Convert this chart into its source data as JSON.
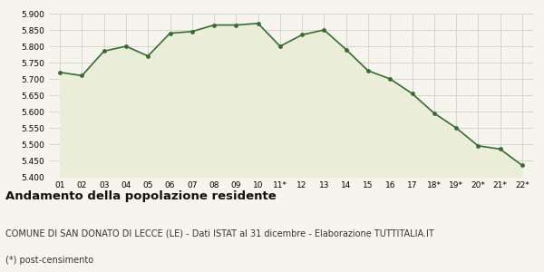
{
  "x_labels": [
    "01",
    "02",
    "03",
    "04",
    "05",
    "06",
    "07",
    "08",
    "09",
    "10",
    "11*",
    "12",
    "13",
    "14",
    "15",
    "16",
    "17",
    "18*",
    "19*",
    "20*",
    "21*",
    "22*"
  ],
  "y_values": [
    5720,
    5710,
    5785,
    5800,
    5770,
    5840,
    5845,
    5865,
    5865,
    5870,
    5800,
    5835,
    5850,
    5790,
    5725,
    5700,
    5655,
    5595,
    5550,
    5495,
    5485,
    5435
  ],
  "line_color": "#3a6b35",
  "fill_color": "#eaeed8",
  "marker_color": "#3a6b35",
  "background_color": "#f5f5ee",
  "grid_color": "#d0d0c8",
  "ylim": [
    5400,
    5900
  ],
  "yticks": [
    5400,
    5450,
    5500,
    5550,
    5600,
    5650,
    5700,
    5750,
    5800,
    5850,
    5900
  ],
  "title": "Andamento della popolazione residente",
  "subtitle": "COMUNE DI SAN DONATO DI LECCE (LE) - Dati ISTAT al 31 dicembre - Elaborazione TUTTITALIA.IT",
  "footnote": "(*) post-censimento",
  "title_fontsize": 9.5,
  "subtitle_fontsize": 7,
  "footnote_fontsize": 7,
  "tick_fontsize": 6.5,
  "marker_size": 12
}
